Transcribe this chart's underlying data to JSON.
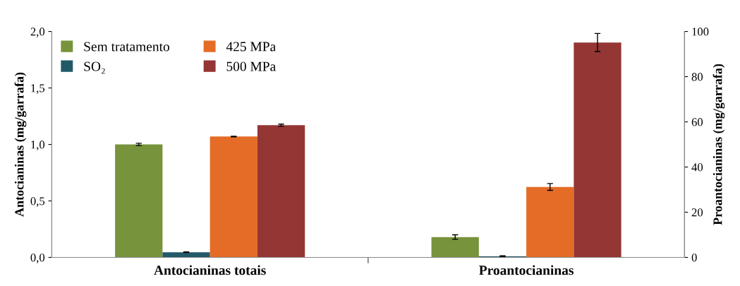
{
  "chart_data": {
    "type": "bar",
    "categories": [
      "Antocianinas totais",
      "Proantocianinas"
    ],
    "ylabel": "Antocianinas (mg/garrafa)",
    "y2label": "Proantocianinas (mg/garrafa)",
    "ylim": [
      0,
      2
    ],
    "yticks": [
      {
        "value": 0,
        "label": "0,0"
      },
      {
        "value": 0.5,
        "label": "0,5"
      },
      {
        "value": 1,
        "label": "1,0"
      },
      {
        "value": 1.5,
        "label": "1,5"
      },
      {
        "value": 2,
        "label": "2,0"
      }
    ],
    "y2lim": [
      0,
      100
    ],
    "y2ticks": [
      0,
      20,
      40,
      60,
      80,
      100
    ],
    "series": [
      {
        "name": "Sem tratamento",
        "color": "#77933c",
        "values": [
          1.0,
          null
        ],
        "errors": [
          0.01,
          null
        ]
      },
      {
        "name": "SO₂",
        "color": "#215968",
        "values": [
          0.046,
          null
        ],
        "errors": [
          0.003,
          null
        ]
      },
      {
        "name": "425 MPa",
        "color": "#e46c27",
        "values": [
          1.07,
          null
        ],
        "errors": [
          0.003,
          null
        ]
      },
      {
        "name": "500 MPa",
        "color": "#943634",
        "values": [
          1.17,
          null
        ],
        "errors": [
          0.01,
          null
        ]
      },
      {
        "axis": "y2",
        "color": "#77933c",
        "values": [
          null,
          9
        ],
        "errors": [
          null,
          1
        ]
      },
      {
        "axis": "y2",
        "color": "#215968",
        "values": [
          null,
          0.5
        ],
        "errors": [
          null,
          0.2
        ]
      },
      {
        "axis": "y2",
        "color": "#e46c27",
        "values": [
          null,
          31.2
        ],
        "errors": [
          null,
          1.5
        ]
      },
      {
        "axis": "y2",
        "color": "#943634",
        "values": [
          null,
          95.1
        ],
        "errors": [
          null,
          4
        ]
      }
    ],
    "legend": "top left",
    "grid": false
  }
}
